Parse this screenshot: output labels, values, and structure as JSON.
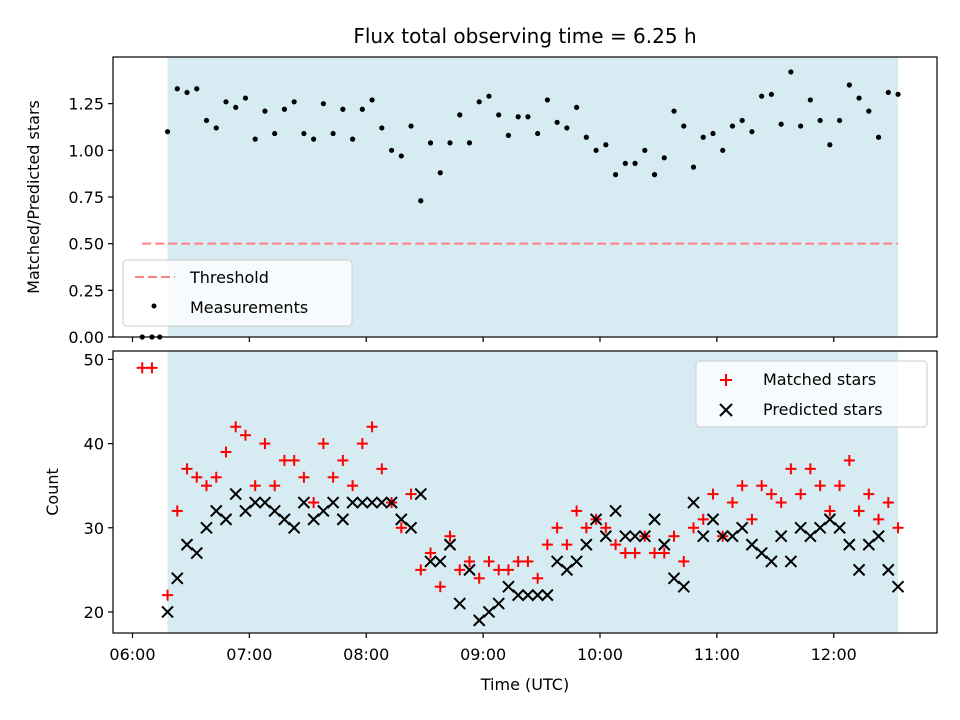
{
  "chart_data": [
    {
      "type": "scatter",
      "panel": "top",
      "title": "Flux total observing time = 6.25 h",
      "ylabel": "Matched/Predicted stars",
      "xlabel": "",
      "ylim": [
        0,
        1.5
      ],
      "yticks": [
        "0.00",
        "0.25",
        "0.50",
        "0.75",
        "1.00",
        "1.25"
      ],
      "shaded_span": {
        "from": "06:18",
        "to": "12:33",
        "color": "#add8e6"
      },
      "threshold": {
        "name": "Threshold",
        "value": 0.5,
        "from": "06:05",
        "to": "12:33",
        "color": "#ff8080"
      },
      "legend": {
        "position": "lower-left",
        "entries": [
          "Threshold",
          "Measurements"
        ]
      },
      "series": [
        {
          "name": "Measurements",
          "color": "#000000",
          "marker": "dot",
          "x": [
            "06:05",
            "06:10",
            "06:14",
            "06:18",
            "06:23",
            "06:28",
            "06:33",
            "06:38",
            "06:43",
            "06:48",
            "06:53",
            "06:58",
            "07:03",
            "07:08",
            "07:13",
            "07:18",
            "07:23",
            "07:28",
            "07:33",
            "07:38",
            "07:43",
            "07:48",
            "07:53",
            "07:58",
            "08:03",
            "08:08",
            "08:13",
            "08:18",
            "08:23",
            "08:28",
            "08:33",
            "08:38",
            "08:43",
            "08:48",
            "08:53",
            "08:58",
            "09:03",
            "09:08",
            "09:13",
            "09:18",
            "09:23",
            "09:28",
            "09:33",
            "09:38",
            "09:43",
            "09:48",
            "09:53",
            "09:58",
            "10:03",
            "10:08",
            "10:13",
            "10:18",
            "10:23",
            "10:28",
            "10:33",
            "10:38",
            "10:43",
            "10:48",
            "10:53",
            "10:58",
            "11:03",
            "11:08",
            "11:13",
            "11:18",
            "11:23",
            "11:28",
            "11:33",
            "11:38",
            "11:43",
            "11:48",
            "11:53",
            "11:58",
            "12:03",
            "12:08",
            "12:13",
            "12:18",
            "12:23",
            "12:28",
            "12:33"
          ],
          "y": [
            0,
            0,
            0,
            1.1,
            1.33,
            1.31,
            1.33,
            1.16,
            1.12,
            1.26,
            1.23,
            1.28,
            1.06,
            1.21,
            1.09,
            1.22,
            1.26,
            1.09,
            1.06,
            1.25,
            1.09,
            1.22,
            1.06,
            1.22,
            1.27,
            1.12,
            1.0,
            0.97,
            1.13,
            0.73,
            1.04,
            0.88,
            1.04,
            1.19,
            1.04,
            1.26,
            1.29,
            1.19,
            1.08,
            1.18,
            1.18,
            1.09,
            1.27,
            1.15,
            1.12,
            1.23,
            1.07,
            1.0,
            1.03,
            0.87,
            0.93,
            0.93,
            1.0,
            0.87,
            0.96,
            1.21,
            1.13,
            0.91,
            1.07,
            1.09,
            1.0,
            1.13,
            1.16,
            1.1,
            1.29,
            1.3,
            1.14,
            1.42,
            1.13,
            1.27,
            1.16,
            1.03,
            1.16,
            1.35,
            1.28,
            1.21,
            1.07,
            1.31,
            1.3
          ]
        }
      ]
    },
    {
      "type": "scatter",
      "panel": "bottom",
      "title": "",
      "xlabel": "Time (UTC)",
      "ylabel": "Count",
      "ylim": [
        17.5,
        51
      ],
      "yticks": [
        "20",
        "30",
        "40",
        "50"
      ],
      "xlim": [
        "05:50",
        "12:53"
      ],
      "xticks": [
        "06:00",
        "07:00",
        "08:00",
        "09:00",
        "10:00",
        "11:00",
        "12:00"
      ],
      "shaded_span": {
        "from": "06:18",
        "to": "12:33",
        "color": "#add8e6"
      },
      "legend": {
        "position": "top-right",
        "entries": [
          "Matched stars",
          "Predicted stars"
        ]
      },
      "x": [
        "06:05",
        "06:10",
        "06:14",
        "06:18",
        "06:23",
        "06:28",
        "06:33",
        "06:38",
        "06:43",
        "06:48",
        "06:53",
        "06:58",
        "07:03",
        "07:08",
        "07:13",
        "07:18",
        "07:23",
        "07:28",
        "07:33",
        "07:38",
        "07:43",
        "07:48",
        "07:53",
        "07:58",
        "08:03",
        "08:08",
        "08:13",
        "08:18",
        "08:23",
        "08:28",
        "08:33",
        "08:38",
        "08:43",
        "08:48",
        "08:53",
        "08:58",
        "09:03",
        "09:08",
        "09:13",
        "09:18",
        "09:23",
        "09:28",
        "09:33",
        "09:38",
        "09:43",
        "09:48",
        "09:53",
        "09:58",
        "10:03",
        "10:08",
        "10:13",
        "10:18",
        "10:23",
        "10:28",
        "10:33",
        "10:38",
        "10:43",
        "10:48",
        "10:53",
        "10:58",
        "11:03",
        "11:08",
        "11:13",
        "11:18",
        "11:23",
        "11:28",
        "11:33",
        "11:38",
        "11:43",
        "11:48",
        "11:53",
        "11:58",
        "12:03",
        "12:08",
        "12:13",
        "12:18",
        "12:23",
        "12:28",
        "12:33"
      ],
      "series": [
        {
          "name": "Matched stars",
          "color": "#ff0000",
          "marker": "plus",
          "values": [
            49,
            49,
            null,
            22,
            32,
            37,
            36,
            35,
            36,
            39,
            42,
            41,
            35,
            40,
            35,
            38,
            38,
            36,
            33,
            40,
            36,
            38,
            35,
            40,
            42,
            37,
            33,
            30,
            34,
            25,
            27,
            23,
            29,
            25,
            26,
            24,
            26,
            25,
            25,
            26,
            26,
            24,
            28,
            30,
            28,
            32,
            30,
            31,
            30,
            28,
            27,
            27,
            29,
            27,
            27,
            29,
            26,
            30,
            31,
            34,
            29,
            33,
            35,
            31,
            35,
            34,
            33,
            37,
            34,
            37,
            35,
            32,
            35,
            38,
            32,
            34,
            31,
            33,
            30
          ]
        },
        {
          "name": "Predicted stars",
          "color": "#000000",
          "marker": "x",
          "values": [
            null,
            null,
            null,
            20,
            24,
            28,
            27,
            30,
            32,
            31,
            34,
            32,
            33,
            33,
            32,
            31,
            30,
            33,
            31,
            32,
            33,
            31,
            33,
            33,
            33,
            33,
            33,
            31,
            30,
            34,
            26,
            26,
            28,
            21,
            25,
            19,
            20,
            21,
            23,
            22,
            22,
            22,
            22,
            26,
            25,
            26,
            28,
            31,
            29,
            32,
            29,
            29,
            29,
            31,
            28,
            24,
            23,
            33,
            29,
            31,
            29,
            29,
            30,
            28,
            27,
            26,
            29,
            26,
            30,
            29,
            30,
            31,
            30,
            28,
            25,
            28,
            29,
            25,
            23
          ]
        }
      ]
    }
  ]
}
